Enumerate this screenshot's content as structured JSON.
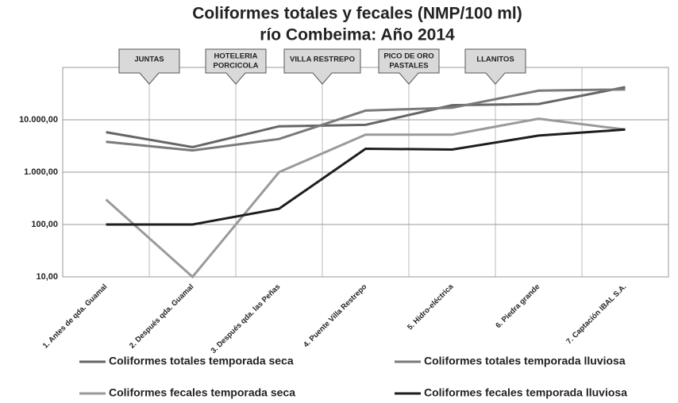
{
  "chart_data": {
    "type": "line",
    "title": "Coliformes totales y fecales  (NMP/100 ml)",
    "subtitle": "río Combeima: Año 2014",
    "categories": [
      "1. Antes de qda. Guamal",
      "2. Después qda. Guamal",
      "3. Después qda. las Peñas",
      "4. Puente Villa Restrepo",
      "5. Hidro-eléctrica",
      "6. Piedra grande",
      "7. Captación IBAL S.A."
    ],
    "series": [
      {
        "name": "Coliformes totales temporada seca",
        "color": "#666666",
        "values": [
          5800,
          3000,
          7500,
          8000,
          19000,
          20000,
          42000
        ]
      },
      {
        "name": "Coliformes totales temporada lluviosa",
        "color": "#7a7a7a",
        "values": [
          3800,
          2600,
          4300,
          15000,
          17000,
          36000,
          38000
        ]
      },
      {
        "name": "Coliformes fecales temporada seca",
        "color": "#9a9a9a",
        "values": [
          300,
          10,
          1000,
          5200,
          5200,
          10500,
          6500
        ]
      },
      {
        "name": "Coliformes fecales temporada lluviosa",
        "color": "#1e1e1e",
        "values": [
          100,
          100,
          200,
          2800,
          2700,
          5000,
          6500
        ]
      }
    ],
    "log_scale": true,
    "ylim": [
      10,
      100000
    ],
    "yticks": [
      {
        "value": 10,
        "label": "10,00"
      },
      {
        "value": 100,
        "label": "100,00"
      },
      {
        "value": 1000,
        "label": "1.000,00"
      },
      {
        "value": 10000,
        "label": "10.000,00"
      }
    ],
    "grid": true,
    "annotations": [
      {
        "lines": [
          "JUNTAS"
        ]
      },
      {
        "lines": [
          "HOTELERIA",
          "PORCICOLA"
        ]
      },
      {
        "lines": [
          "VILLA RESTREPO"
        ]
      },
      {
        "lines": [
          "PICO DE ORO",
          "PASTALES"
        ]
      },
      {
        "lines": [
          "LLANITOS"
        ]
      }
    ]
  }
}
